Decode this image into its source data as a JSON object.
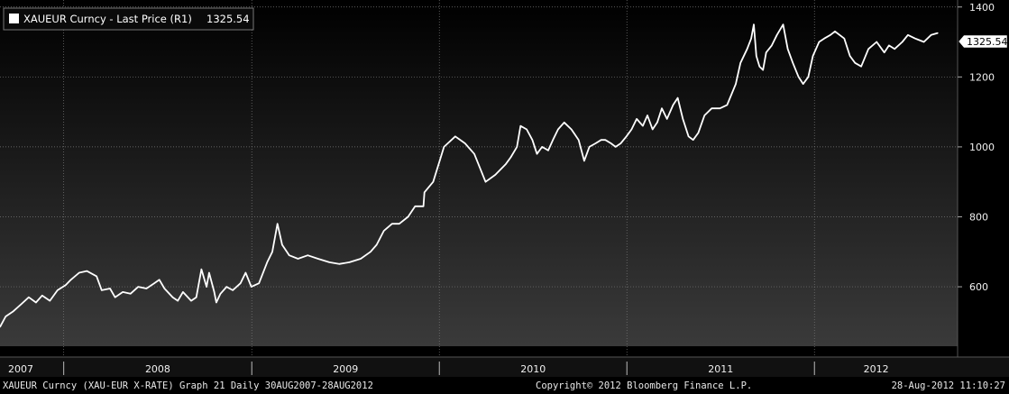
{
  "legend": {
    "label": "XAUEUR Curncy - Last Price (R1)",
    "value": "1325.54"
  },
  "last_price_tag": "1325.54",
  "footer": {
    "left": "XAUEUR Curncy (XAU-EUR X-RATE) Graph 21  Daily 30AUG2007-28AUG2012",
    "center": "Copyright© 2012 Bloomberg Finance L.P.",
    "right": "28-Aug-2012 11:10:27"
  },
  "colors": {
    "line": "#ffffff",
    "grid": "#7a7a7a",
    "legend_swatch": "#ffffff"
  },
  "chart_data": {
    "type": "line",
    "title": "XAUEUR Curncy - Last Price (R1)",
    "xlabel": "",
    "ylabel": "",
    "y_axis_side": "right",
    "ylim": [
      430,
      1420
    ],
    "yticks": [
      600,
      800,
      1000,
      1200,
      1400
    ],
    "ytick_labels": [
      "600",
      "800",
      "1000",
      "1200",
      "1400"
    ],
    "xlim": [
      "2007-08-30",
      "2012-08-28"
    ],
    "x_year_labels": [
      "2007",
      "2008",
      "2009",
      "2010",
      "2011",
      "2012"
    ],
    "year_boundaries": [
      "2008-01-01",
      "2009-01-01",
      "2010-01-01",
      "2011-01-01",
      "2012-01-01"
    ],
    "grid": true,
    "legend_position": "top-left",
    "series": [
      {
        "name": "XAUEUR Curncy - Last Price (R1)",
        "x": [
          "2007-08-30",
          "2007-09-10",
          "2007-09-25",
          "2007-10-10",
          "2007-10-25",
          "2007-11-08",
          "2007-11-20",
          "2007-12-05",
          "2007-12-20",
          "2008-01-05",
          "2008-01-15",
          "2008-01-31",
          "2008-02-15",
          "2008-03-05",
          "2008-03-15",
          "2008-03-31",
          "2008-04-10",
          "2008-04-25",
          "2008-05-10",
          "2008-05-25",
          "2008-06-10",
          "2008-06-25",
          "2008-07-05",
          "2008-07-15",
          "2008-07-31",
          "2008-08-10",
          "2008-08-20",
          "2008-09-05",
          "2008-09-15",
          "2008-09-25",
          "2008-10-05",
          "2008-10-10",
          "2008-10-20",
          "2008-10-24",
          "2008-11-01",
          "2008-11-13",
          "2008-11-25",
          "2008-12-10",
          "2008-12-20",
          "2008-12-31",
          "2009-01-15",
          "2009-01-31",
          "2009-02-10",
          "2009-02-20",
          "2009-03-01",
          "2009-03-15",
          "2009-04-01",
          "2009-04-20",
          "2009-05-10",
          "2009-06-01",
          "2009-06-20",
          "2009-07-10",
          "2009-08-01",
          "2009-08-20",
          "2009-09-01",
          "2009-09-15",
          "2009-10-01",
          "2009-10-15",
          "2009-11-01",
          "2009-11-15",
          "2009-12-01",
          "2009-12-03",
          "2009-12-20",
          "2010-01-10",
          "2010-02-01",
          "2010-02-20",
          "2010-03-10",
          "2010-04-01",
          "2010-04-20",
          "2010-05-10",
          "2010-05-20",
          "2010-06-01",
          "2010-06-08",
          "2010-06-20",
          "2010-07-01",
          "2010-07-10",
          "2010-07-20",
          "2010-08-01",
          "2010-08-10",
          "2010-08-20",
          "2010-09-01",
          "2010-09-15",
          "2010-09-29",
          "2010-10-10",
          "2010-10-20",
          "2010-11-01",
          "2010-11-12",
          "2010-11-20",
          "2010-12-01",
          "2010-12-10",
          "2010-12-20",
          "2010-12-31",
          "2011-01-10",
          "2011-01-20",
          "2011-02-01",
          "2011-02-10",
          "2011-02-20",
          "2011-03-01",
          "2011-03-10",
          "2011-03-20",
          "2011-04-01",
          "2011-04-10",
          "2011-04-20",
          "2011-05-01",
          "2011-05-10",
          "2011-05-20",
          "2011-06-01",
          "2011-06-15",
          "2011-07-01",
          "2011-07-15",
          "2011-08-01",
          "2011-08-10",
          "2011-08-23",
          "2011-08-31",
          "2011-09-05",
          "2011-09-10",
          "2011-09-16",
          "2011-09-23",
          "2011-09-29",
          "2011-10-10",
          "2011-10-20",
          "2011-11-01",
          "2011-11-10",
          "2011-11-20",
          "2011-12-01",
          "2011-12-10",
          "2011-12-20",
          "2011-12-29",
          "2012-01-10",
          "2012-01-20",
          "2012-02-01",
          "2012-02-10",
          "2012-02-28",
          "2012-03-10",
          "2012-03-20",
          "2012-04-01",
          "2012-04-15",
          "2012-05-01",
          "2012-05-16",
          "2012-05-25",
          "2012-06-05",
          "2012-06-20",
          "2012-07-01",
          "2012-07-15",
          "2012-08-01",
          "2012-08-15",
          "2012-08-28"
        ],
        "values": [
          485,
          515,
          530,
          550,
          570,
          555,
          575,
          560,
          590,
          605,
          620,
          640,
          645,
          630,
          590,
          595,
          570,
          585,
          580,
          600,
          595,
          610,
          620,
          595,
          570,
          560,
          585,
          560,
          570,
          650,
          600,
          640,
          585,
          555,
          580,
          600,
          590,
          610,
          640,
          600,
          610,
          670,
          700,
          780,
          720,
          690,
          680,
          690,
          680,
          670,
          665,
          670,
          680,
          700,
          720,
          760,
          780,
          780,
          800,
          830,
          830,
          870,
          900,
          1000,
          1030,
          1010,
          980,
          900,
          920,
          950,
          970,
          1000,
          1060,
          1050,
          1020,
          980,
          1000,
          990,
          1020,
          1050,
          1070,
          1050,
          1020,
          960,
          1000,
          1010,
          1020,
          1020,
          1010,
          1000,
          1010,
          1030,
          1050,
          1080,
          1060,
          1090,
          1050,
          1070,
          1110,
          1080,
          1120,
          1140,
          1080,
          1030,
          1020,
          1040,
          1090,
          1110,
          1110,
          1120,
          1180,
          1240,
          1280,
          1310,
          1350,
          1260,
          1230,
          1220,
          1270,
          1290,
          1320,
          1350,
          1280,
          1240,
          1200,
          1180,
          1200,
          1260,
          1300,
          1310,
          1320,
          1330,
          1310,
          1260,
          1240,
          1230,
          1280,
          1300,
          1270,
          1290,
          1280,
          1300,
          1320,
          1310,
          1300,
          1320,
          1325.54
        ]
      }
    ]
  }
}
